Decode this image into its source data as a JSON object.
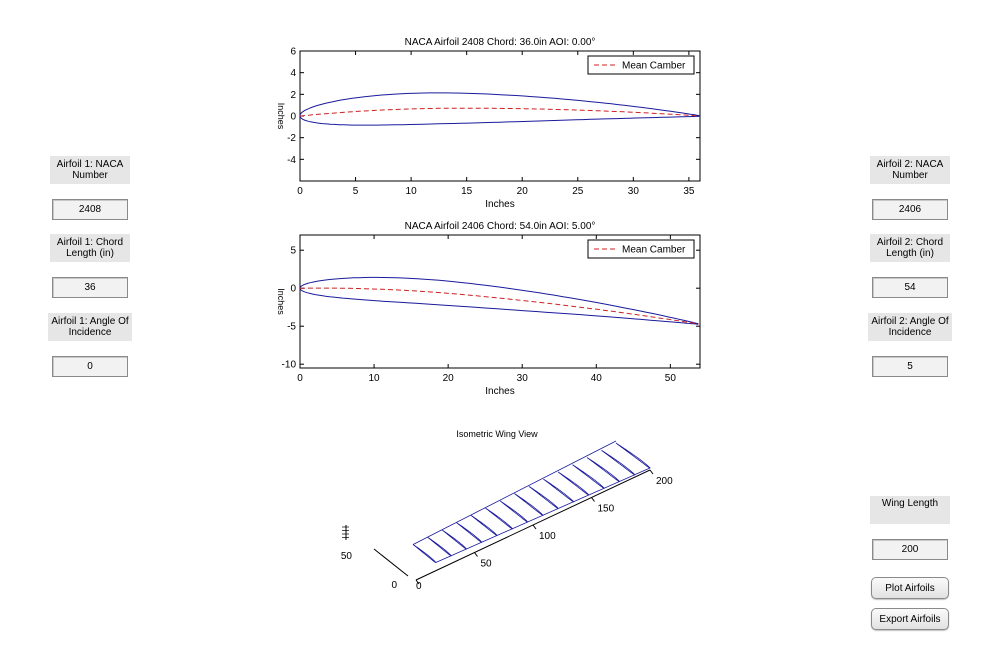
{
  "left_panel": {
    "naca_label": "Airfoil 1: NACA Number",
    "naca_value": "2408",
    "chord_label": "Airfoil 1: Chord Length (in)",
    "chord_value": "36",
    "aoi_label": "Airfoil 1: Angle Of Incidence",
    "aoi_value": "0"
  },
  "right_panel": {
    "naca_label": "Airfoil 2: NACA Number",
    "naca_value": "2406",
    "chord_label": "Airfoil 2: Chord Length (in)",
    "chord_value": "54",
    "aoi_label": "Airfoil 2: Angle Of Incidence",
    "aoi_value": "5",
    "wing_length_label": "Wing Length",
    "wing_length_value": "200",
    "plot_button": "Plot Airfoils",
    "export_button": "Export Airfoils"
  },
  "colors": {
    "profile": "#1a1a9c",
    "camber": "#cc2222"
  },
  "chart_data": [
    {
      "type": "line",
      "title": "NACA Airfoil 2408  Chord: 36.0in  AOI: 0.00°",
      "xlabel": "Inches",
      "ylabel": "Inches",
      "xlim": [
        0,
        36
      ],
      "ylim": [
        -6,
        6
      ],
      "xticks": [
        0,
        5,
        10,
        15,
        20,
        25,
        30,
        35
      ],
      "yticks": [
        -4,
        -2,
        0,
        2,
        4,
        6
      ],
      "legend": {
        "entries": [
          "Mean Camber"
        ],
        "placement": "top-right"
      },
      "airfoil": {
        "m": 0.02,
        "p": 0.4,
        "t": 0.08,
        "chord": 36,
        "aoi_deg": 0
      },
      "series": [
        {
          "name": "",
          "style": "solid",
          "color": "#1a1a9c"
        },
        {
          "name": "Mean Camber",
          "style": "dashed",
          "color": "#cc2222"
        }
      ]
    },
    {
      "type": "line",
      "title": "NACA Airfoil 2406  Chord: 54.0in  AOI: 5.00°",
      "xlabel": "Inches",
      "ylabel": "Inches",
      "xlim": [
        0,
        54
      ],
      "ylim": [
        -10.5,
        7
      ],
      "xticks": [
        0,
        10,
        20,
        30,
        40,
        50
      ],
      "yticks": [
        -10,
        -5,
        0,
        5
      ],
      "legend": {
        "entries": [
          "Mean Camber"
        ],
        "placement": "top-right"
      },
      "airfoil": {
        "m": 0.02,
        "p": 0.4,
        "t": 0.06,
        "chord": 54,
        "aoi_deg": 5
      },
      "series": [
        {
          "name": "",
          "style": "solid",
          "color": "#1a1a9c"
        },
        {
          "name": "Mean Camber",
          "style": "dashed",
          "color": "#cc2222"
        }
      ]
    },
    {
      "type": "line",
      "title": "Isometric Wing View",
      "span_ticks": [
        0,
        50,
        100,
        150,
        200
      ],
      "chord_ticks": [
        0,
        50
      ],
      "wing_length": 200,
      "sections": 14
    }
  ]
}
